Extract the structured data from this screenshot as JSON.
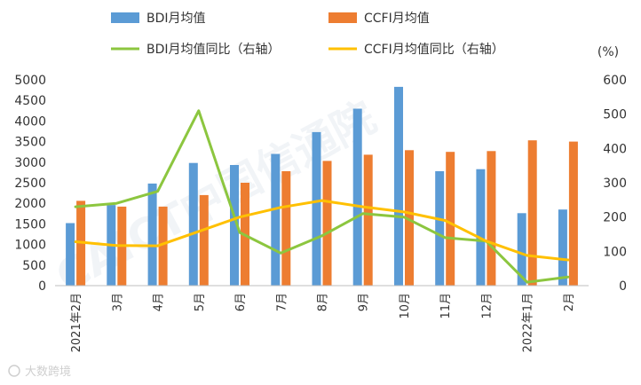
{
  "chart_data": {
    "type": "bar",
    "categories": [
      "2021年2月",
      "3月",
      "4月",
      "5月",
      "6月",
      "7月",
      "8月",
      "9月",
      "10月",
      "11月",
      "12月",
      "2022年1月",
      "2月"
    ],
    "series": [
      {
        "name": "BDI月均值",
        "kind": "bar",
        "axis": "left",
        "color": "#5b9bd5",
        "values": [
          1520,
          1960,
          2480,
          2980,
          2930,
          3200,
          3730,
          4300,
          4830,
          2780,
          2830,
          1760,
          1850
        ]
      },
      {
        "name": "CCFI月均值",
        "kind": "bar",
        "axis": "left",
        "color": "#ed7d31",
        "values": [
          2060,
          1920,
          1920,
          2200,
          2500,
          2780,
          3030,
          3180,
          3290,
          3250,
          3270,
          3530,
          3500
        ]
      },
      {
        "name": "BDI月均值同比（右轴）",
        "kind": "line",
        "axis": "right",
        "color": "#8cc63f",
        "values": [
          230,
          240,
          275,
          510,
          155,
          95,
          145,
          210,
          200,
          140,
          130,
          10,
          25
        ]
      },
      {
        "name": "CCFI月均值同比（右轴）",
        "kind": "line",
        "axis": "right",
        "color": "#ffc000",
        "values": [
          128,
          117,
          116,
          158,
          200,
          228,
          248,
          230,
          215,
          190,
          130,
          88,
          75
        ]
      }
    ],
    "y_left": {
      "min": 0,
      "max": 5000,
      "step": 500,
      "ticks": [
        "0",
        "500",
        "1000",
        "1500",
        "2000",
        "2500",
        "3000",
        "3500",
        "4000",
        "4500",
        "5000"
      ]
    },
    "y_right": {
      "min": 0,
      "max": 600,
      "step": 100,
      "unit": "(%)",
      "ticks": [
        "0",
        "100",
        "200",
        "300",
        "400",
        "500",
        "600"
      ]
    },
    "legend_position": "top",
    "grid": false
  },
  "watermark": "CAICT中国信通院",
  "credit": "大数跨境"
}
